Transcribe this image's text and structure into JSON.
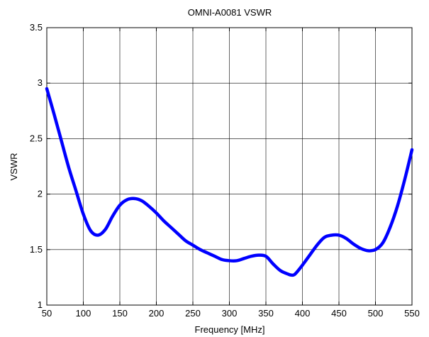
{
  "chart_data": {
    "type": "line",
    "title": "OMNI-A0081 VSWR",
    "xlabel": "Frequency [MHz]",
    "ylabel": "VSWR",
    "xlim": [
      50,
      550
    ],
    "ylim": [
      1,
      3.5
    ],
    "xticks": [
      "50",
      "100",
      "150",
      "200",
      "250",
      "300",
      "350",
      "400",
      "450",
      "500",
      "550"
    ],
    "yticks": [
      "1",
      "1.5",
      "2",
      "2.5",
      "3",
      "3.5"
    ],
    "grid": true,
    "line_color": "#0000ff",
    "series": [
      {
        "x": [
          50,
          60,
          70,
          80,
          90,
          100,
          110,
          120,
          130,
          140,
          150,
          160,
          170,
          180,
          190,
          200,
          210,
          220,
          230,
          240,
          250,
          260,
          270,
          280,
          290,
          300,
          310,
          320,
          330,
          340,
          350,
          360,
          370,
          380,
          385,
          390,
          400,
          410,
          420,
          430,
          440,
          450,
          460,
          470,
          480,
          490,
          500,
          510,
          520,
          530,
          540,
          550
        ],
        "y": [
          2.95,
          2.72,
          2.48,
          2.24,
          2.03,
          1.82,
          1.67,
          1.63,
          1.68,
          1.8,
          1.9,
          1.95,
          1.96,
          1.94,
          1.89,
          1.83,
          1.76,
          1.7,
          1.64,
          1.58,
          1.54,
          1.5,
          1.47,
          1.44,
          1.41,
          1.4,
          1.4,
          1.42,
          1.44,
          1.45,
          1.44,
          1.37,
          1.31,
          1.28,
          1.27,
          1.28,
          1.36,
          1.45,
          1.54,
          1.61,
          1.63,
          1.63,
          1.6,
          1.55,
          1.51,
          1.49,
          1.5,
          1.56,
          1.7,
          1.89,
          2.13,
          2.4
        ]
      }
    ]
  }
}
